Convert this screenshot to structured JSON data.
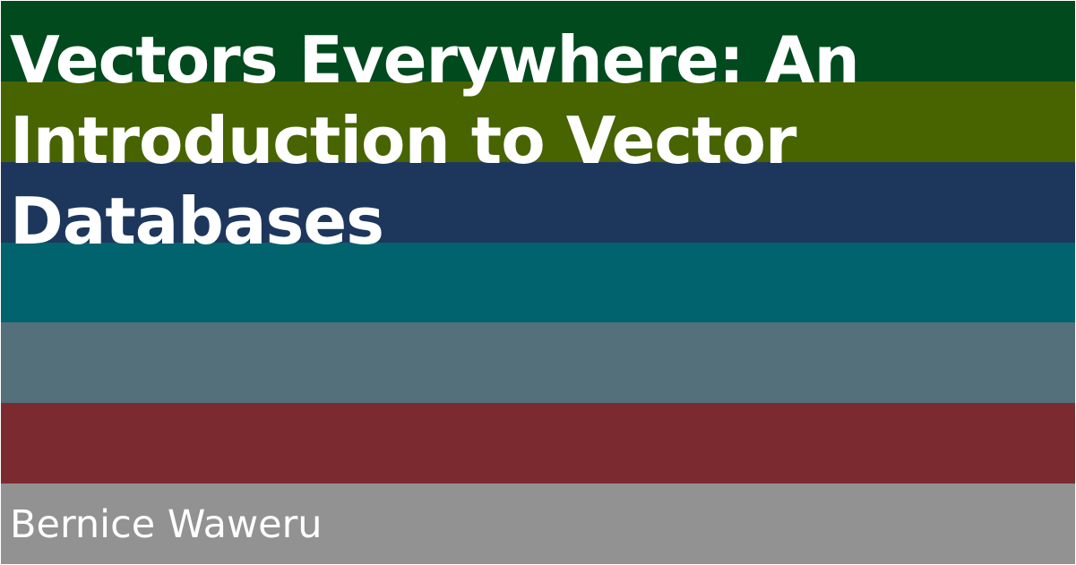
{
  "title": "Vectors Everywhere: An Introduction to Vector Databases",
  "author": "Bernice Waweru",
  "colors": {
    "text": "#ffffff",
    "stripes": [
      "#004a1e",
      "#476401",
      "#1d375c",
      "#00636d",
      "#53707b",
      "#7b2b30",
      "#929292"
    ]
  }
}
